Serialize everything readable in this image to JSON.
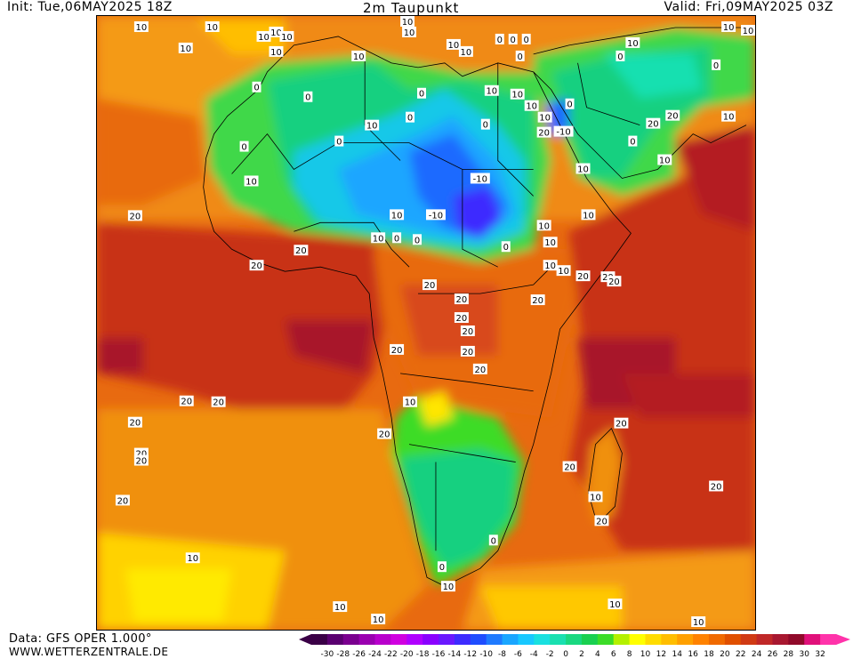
{
  "header": {
    "init": "Init: Tue,06MAY2025 18Z",
    "title": "2m Taupunkt",
    "valid": "Valid: Fri,09MAY2025 03Z"
  },
  "footer": {
    "source": "Data: GFS OPER 1.000°",
    "website": "WWW.WETTERZENTRALE.DE"
  },
  "legend": {
    "ticks": [
      "-30",
      "-28",
      "-26",
      "-24",
      "-22",
      "-20",
      "-18",
      "-16",
      "-14",
      "-12",
      "-10",
      "-8",
      "-6",
      "-4",
      "-2",
      "0",
      "2",
      "4",
      "6",
      "8",
      "10",
      "12",
      "14",
      "16",
      "18",
      "20",
      "22",
      "24",
      "26",
      "28",
      "30",
      "32"
    ],
    "colors": [
      "#3a0046",
      "#5a0070",
      "#7a008f",
      "#9a00b0",
      "#b800cc",
      "#d000e0",
      "#b000ff",
      "#8a00ff",
      "#6a18ff",
      "#3d2bff",
      "#1f4dff",
      "#1f7aff",
      "#1aa6ff",
      "#18c8ff",
      "#19e0e0",
      "#19e0b0",
      "#19d880",
      "#19d050",
      "#3cdc28",
      "#b4f000",
      "#ffff00",
      "#ffdc00",
      "#ffbe00",
      "#ffa000",
      "#ff8200",
      "#f06a00",
      "#e05000",
      "#d03a14",
      "#c02828",
      "#a81830",
      "#900a2a",
      "#e0107a",
      "#ff33aa"
    ]
  },
  "contour_labels": [
    {
      "t": "10",
      "c": [
        158,
        29
      ]
    },
    {
      "t": "10",
      "c": [
        238,
        29
      ]
    },
    {
      "t": "10",
      "c": [
        208,
        53
      ]
    },
    {
      "t": "10",
      "c": [
        296,
        40
      ]
    },
    {
      "t": "10",
      "c": [
        310,
        35
      ]
    },
    {
      "t": "10",
      "c": [
        322,
        40
      ]
    },
    {
      "t": "10",
      "c": [
        310,
        57
      ]
    },
    {
      "t": "10",
      "c": [
        403,
        62
      ]
    },
    {
      "t": "10",
      "c": [
        458,
        23
      ]
    },
    {
      "t": "10",
      "c": [
        460,
        35
      ]
    },
    {
      "t": "10",
      "c": [
        510,
        49
      ]
    },
    {
      "t": "10",
      "c": [
        524,
        57
      ]
    },
    {
      "t": "0",
      "c": [
        562,
        43
      ]
    },
    {
      "t": "0",
      "c": [
        577,
        43
      ]
    },
    {
      "t": "0",
      "c": [
        592,
        43
      ]
    },
    {
      "t": "0",
      "c": [
        585,
        62
      ]
    },
    {
      "t": "10",
      "c": [
        712,
        47
      ]
    },
    {
      "t": "10",
      "c": [
        820,
        29
      ]
    },
    {
      "t": "10",
      "c": [
        842,
        33
      ]
    },
    {
      "t": "0",
      "c": [
        698,
        62
      ]
    },
    {
      "t": "0",
      "c": [
        806,
        72
      ]
    },
    {
      "t": "0",
      "c": [
        288,
        97
      ]
    },
    {
      "t": "0",
      "c": [
        346,
        108
      ]
    },
    {
      "t": "10",
      "c": [
        418,
        140
      ]
    },
    {
      "t": "0",
      "c": [
        461,
        131
      ]
    },
    {
      "t": "0",
      "c": [
        474,
        104
      ]
    },
    {
      "t": "10",
      "c": [
        553,
        101
      ]
    },
    {
      "t": "10",
      "c": [
        582,
        105
      ]
    },
    {
      "t": "10",
      "c": [
        598,
        118
      ]
    },
    {
      "t": "0",
      "c": [
        641,
        116
      ]
    },
    {
      "t": "0",
      "c": [
        546,
        139
      ]
    },
    {
      "t": "10",
      "c": [
        613,
        131
      ]
    },
    {
      "t": "20",
      "c": [
        612,
        148
      ]
    },
    {
      "t": "-10",
      "c": [
        634,
        147
      ]
    },
    {
      "t": "20",
      "c": [
        735,
        138
      ]
    },
    {
      "t": "20",
      "c": [
        757,
        129
      ]
    },
    {
      "t": "10",
      "c": [
        820,
        130
      ]
    },
    {
      "t": "0",
      "c": [
        712,
        158
      ]
    },
    {
      "t": "10",
      "c": [
        748,
        179
      ]
    },
    {
      "t": "0",
      "c": [
        274,
        164
      ]
    },
    {
      "t": "0",
      "c": [
        381,
        158
      ]
    },
    {
      "t": "10",
      "c": [
        282,
        203
      ]
    },
    {
      "t": "10",
      "c": [
        656,
        189
      ]
    },
    {
      "t": "-10",
      "c": [
        540,
        200
      ]
    },
    {
      "t": "-10",
      "c": [
        490,
        241
      ]
    },
    {
      "t": "10",
      "c": [
        446,
        241
      ]
    },
    {
      "t": "10",
      "c": [
        662,
        241
      ]
    },
    {
      "t": "20",
      "c": [
        151,
        242
      ]
    },
    {
      "t": "10",
      "c": [
        425,
        267
      ]
    },
    {
      "t": "0",
      "c": [
        446,
        267
      ]
    },
    {
      "t": "0",
      "c": [
        469,
        269
      ]
    },
    {
      "t": "10",
      "c": [
        612,
        253
      ]
    },
    {
      "t": "10",
      "c": [
        619,
        272
      ]
    },
    {
      "t": "0",
      "c": [
        569,
        277
      ]
    },
    {
      "t": "20",
      "c": [
        338,
        281
      ]
    },
    {
      "t": "20",
      "c": [
        288,
        298
      ]
    },
    {
      "t": "10",
      "c": [
        619,
        298
      ]
    },
    {
      "t": "10",
      "c": [
        634,
        304
      ]
    },
    {
      "t": "20",
      "c": [
        656,
        310
      ]
    },
    {
      "t": "20",
      "c": [
        684,
        311
      ]
    },
    {
      "t": "20",
      "c": [
        691,
        316
      ]
    },
    {
      "t": "20",
      "c": [
        483,
        320
      ]
    },
    {
      "t": "20",
      "c": [
        519,
        336
      ]
    },
    {
      "t": "20",
      "c": [
        605,
        337
      ]
    },
    {
      "t": "20",
      "c": [
        519,
        357
      ]
    },
    {
      "t": "20",
      "c": [
        526,
        372
      ]
    },
    {
      "t": "20",
      "c": [
        446,
        393
      ]
    },
    {
      "t": "20",
      "c": [
        526,
        395
      ]
    },
    {
      "t": "20",
      "c": [
        540,
        415
      ]
    },
    {
      "t": "20",
      "c": [
        209,
        451
      ]
    },
    {
      "t": "20",
      "c": [
        245,
        452
      ]
    },
    {
      "t": "10",
      "c": [
        461,
        452
      ]
    },
    {
      "t": "20",
      "c": [
        151,
        475
      ]
    },
    {
      "t": "20",
      "c": [
        699,
        476
      ]
    },
    {
      "t": "20",
      "c": [
        432,
        488
      ]
    },
    {
      "t": "20",
      "c": [
        158,
        510
      ]
    },
    {
      "t": "20",
      "c": [
        158,
        518
      ]
    },
    {
      "t": "20",
      "c": [
        641,
        525
      ]
    },
    {
      "t": "20",
      "c": [
        806,
        547
      ]
    },
    {
      "t": "10",
      "c": [
        670,
        559
      ]
    },
    {
      "t": "20",
      "c": [
        137,
        563
      ]
    },
    {
      "t": "20",
      "c": [
        677,
        586
      ]
    },
    {
      "t": "0",
      "c": [
        555,
        608
      ]
    },
    {
      "t": "10",
      "c": [
        216,
        628
      ]
    },
    {
      "t": "0",
      "c": [
        497,
        638
      ]
    },
    {
      "t": "10",
      "c": [
        504,
        660
      ]
    },
    {
      "t": "10",
      "c": [
        382,
        683
      ]
    },
    {
      "t": "10",
      "c": [
        692,
        680
      ]
    },
    {
      "t": "10",
      "c": [
        425,
        697
      ]
    },
    {
      "t": "10",
      "c": [
        786,
        700
      ]
    }
  ]
}
